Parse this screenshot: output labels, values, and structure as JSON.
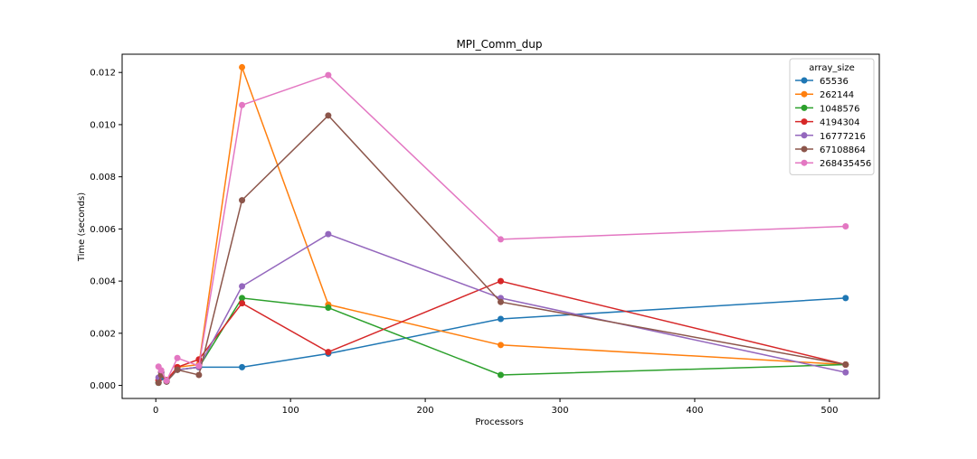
{
  "chart_data": {
    "type": "line",
    "title": "MPI_Comm_dup",
    "xlabel": "Processors",
    "ylabel": "Time (seconds)",
    "xlim": [
      -25,
      537
    ],
    "ylim": [
      -0.0005,
      0.0127
    ],
    "xticks": [
      0,
      100,
      200,
      300,
      400,
      500
    ],
    "xtick_labels": [
      "0",
      "100",
      "200",
      "300",
      "400",
      "500"
    ],
    "yticks": [
      0.0,
      0.002,
      0.004,
      0.006,
      0.008,
      0.01,
      0.012
    ],
    "ytick_labels": [
      "0.000",
      "0.002",
      "0.004",
      "0.006",
      "0.008",
      "0.010",
      "0.012"
    ],
    "grid": false,
    "legend": {
      "title": "array_size",
      "position": "top-right"
    },
    "x": [
      2,
      4,
      8,
      16,
      32,
      64,
      128,
      256,
      512
    ],
    "series": [
      {
        "name": "65536",
        "color": "#1f77b4",
        "values": [
          0.0001,
          0.0003,
          0.00015,
          0.0006,
          0.0007,
          0.0007,
          0.00122,
          0.00255,
          0.00335
        ]
      },
      {
        "name": "262144",
        "color": "#ff7f0e",
        "values": [
          0.0002,
          0.0005,
          0.0002,
          0.0007,
          0.0008,
          0.0122,
          0.0031,
          0.00155,
          0.0008
        ]
      },
      {
        "name": "1048576",
        "color": "#2ca02c",
        "values": [
          0.0001,
          0.0004,
          0.00015,
          0.0006,
          0.0007,
          0.00335,
          0.00298,
          0.0004,
          0.0008
        ]
      },
      {
        "name": "4194304",
        "color": "#d62728",
        "values": [
          0.0002,
          0.0005,
          0.0002,
          0.0007,
          0.001,
          0.00315,
          0.00128,
          0.004,
          0.0008
        ]
      },
      {
        "name": "16777216",
        "color": "#9467bd",
        "values": [
          0.0003,
          0.0005,
          0.00015,
          0.0006,
          0.0007,
          0.0038,
          0.0058,
          0.00335,
          0.0005
        ]
      },
      {
        "name": "67108864",
        "color": "#8c564b",
        "values": [
          0.0001,
          0.0004,
          0.00015,
          0.0006,
          0.0004,
          0.0071,
          0.01035,
          0.0032,
          0.0008
        ]
      },
      {
        "name": "268435456",
        "color": "#e377c2",
        "values": [
          0.00072,
          0.00058,
          0.00018,
          0.00105,
          0.00075,
          0.01075,
          0.0119,
          0.0056,
          0.0061
        ]
      }
    ]
  }
}
